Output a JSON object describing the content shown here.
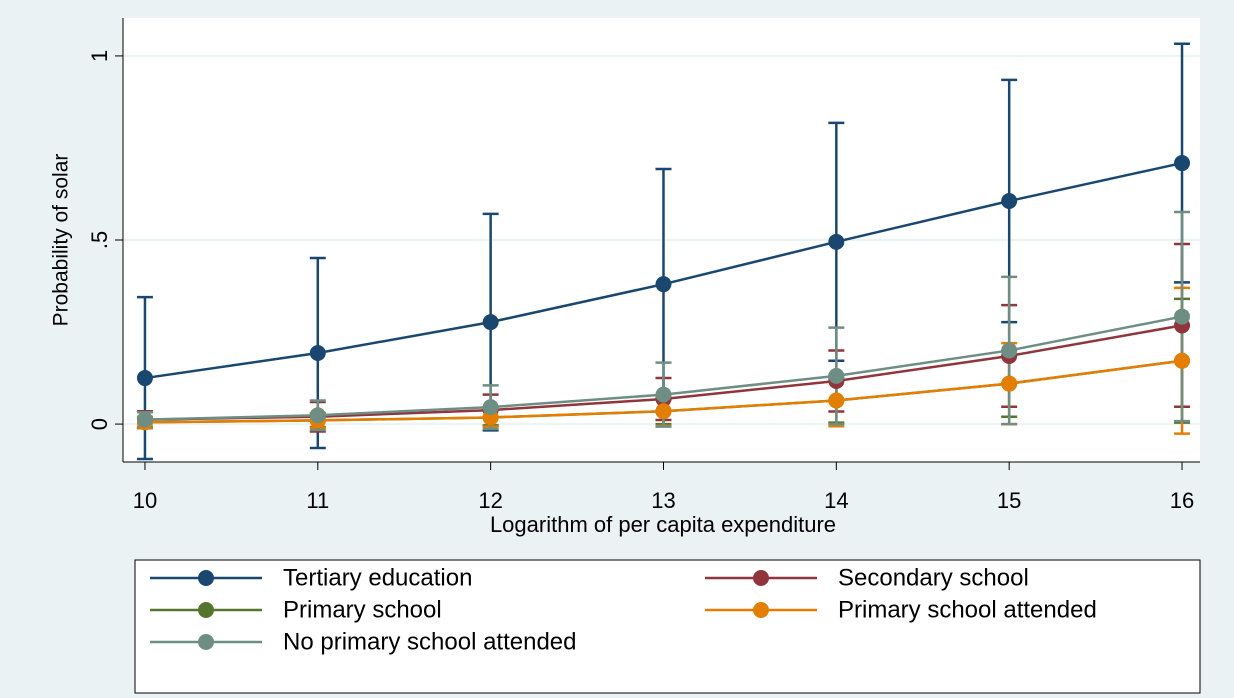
{
  "chart_data": {
    "type": "line",
    "x_label": "Logarithm of per capita expenditure",
    "y_label": "Probability of solar",
    "x": [
      10,
      11,
      12,
      13,
      14,
      15,
      16
    ],
    "xlim": [
      9.873,
      16.104
    ],
    "xticks": [
      10,
      11,
      12,
      13,
      14,
      15,
      16
    ],
    "ylim": [
      -0.103,
      1.103
    ],
    "yticks": [
      0,
      {
        "value": 0.5,
        "label": ".5"
      },
      1
    ],
    "grid": true,
    "legend": "bottom",
    "series": [
      {
        "name": "Tertiary education",
        "color": "#1a476f",
        "values": [
          0.125,
          0.193,
          0.277,
          0.38,
          0.495,
          0.606,
          0.709
        ],
        "errors": [
          0.22,
          0.258,
          0.294,
          0.313,
          0.323,
          0.329,
          0.324
        ]
      },
      {
        "name": "Secondary school",
        "color": "#90353b",
        "values": [
          0.012,
          0.02,
          0.038,
          0.068,
          0.117,
          0.185,
          0.268
        ],
        "errors": [
          0.023,
          0.04,
          0.042,
          0.057,
          0.083,
          0.138,
          0.221
        ]
      },
      {
        "name": "Primary school",
        "color": "#55752f",
        "values": [
          0.005,
          0.01,
          0.018,
          0.035,
          0.064,
          0.11,
          0.172
        ],
        "errors": [
          0.013,
          0.018,
          0.022,
          0.035,
          0.06,
          0.09,
          0.168
        ]
      },
      {
        "name": "Primary school attended",
        "color": "#e37e00",
        "values": [
          0.005,
          0.01,
          0.018,
          0.035,
          0.064,
          0.11,
          0.172
        ],
        "errors": [
          0.015,
          0.02,
          0.025,
          0.04,
          0.07,
          0.11,
          0.198
        ]
      },
      {
        "name": "No primary school attended",
        "color": "#6e8e84",
        "values": [
          0.012,
          0.024,
          0.046,
          0.08,
          0.131,
          0.2,
          0.292
        ],
        "errors": [
          0.02,
          0.04,
          0.059,
          0.087,
          0.131,
          0.2,
          0.284
        ]
      }
    ]
  }
}
